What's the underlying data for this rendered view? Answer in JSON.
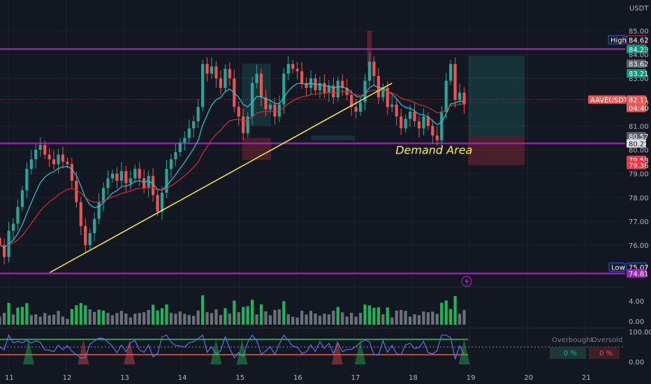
{
  "chart_data": {
    "type": "candlestick",
    "symbol_tag": "AAVEUSDT.P",
    "currency": "USDT",
    "price_axis": {
      "range": [
        74.5,
        85.4
      ],
      "ticks": [
        "85.00",
        "84.00",
        "83.00",
        "82.00",
        "81.00",
        "80.00",
        "79.00",
        "78.00",
        "77.00",
        "76.00"
      ]
    },
    "time_axis": {
      "labels": [
        "11",
        "12",
        "13",
        "14",
        "15",
        "16",
        "17",
        "18",
        "19",
        "20",
        "21"
      ],
      "day_start": 11,
      "day_end": 21.9
    },
    "last_price": "82.11",
    "countdown": "04:40",
    "price_tags": [
      {
        "text": "84.62",
        "price": 84.62,
        "bg": "#131722",
        "fg": "#ffffff",
        "border": "#e91e63"
      },
      {
        "text": "84.23",
        "price": 84.23,
        "bg": "#089981",
        "fg": "#ffffff"
      },
      {
        "text": "83.62",
        "price": 83.62,
        "bg": "#5d606b",
        "fg": "#ffffff"
      },
      {
        "text": "83.21",
        "price": 83.21,
        "bg": "#089981",
        "fg": "#ffffff"
      },
      {
        "text": "81.80",
        "price": 81.8,
        "bg": "#dedede",
        "fg": "#131722"
      },
      {
        "text": "80.57",
        "price": 80.57,
        "bg": "#5d606b",
        "fg": "#ffffff"
      },
      {
        "text": "80.27",
        "price": 80.27,
        "bg": "#dedede",
        "fg": "#131722"
      },
      {
        "text": "79.58",
        "price": 79.58,
        "bg": "#f23645",
        "fg": "#ffffff"
      },
      {
        "text": "79.36",
        "price": 79.36,
        "bg": "#f23645",
        "fg": "#ffffff"
      },
      {
        "text": "75.07",
        "price": 75.07,
        "bg": "#131722",
        "fg": "#ffffff",
        "border": "#2962ff"
      },
      {
        "text": "74.81",
        "price": 74.81,
        "bg": "#9c27b0",
        "fg": "#ffffff"
      }
    ],
    "high_label": "High",
    "low_label": "Low",
    "horizontal_levels": [
      84.23,
      80.27,
      74.81
    ],
    "trendline": {
      "from": [
        11.72,
        74.85
      ],
      "to": [
        17.65,
        82.8
      ]
    },
    "annotation": {
      "text": "Demand Area",
      "day": 17.71,
      "price": 80.0
    },
    "zones": [
      {
        "d1": 15.05,
        "d2": 15.55,
        "p1": 81.0,
        "p2": 83.62,
        "color": "#26a69a",
        "opacity": 0.18
      },
      {
        "d1": 15.05,
        "d2": 15.55,
        "p1": 79.58,
        "p2": 80.5,
        "color": "#f23645",
        "opacity": 0.25
      },
      {
        "d1": 16.25,
        "d2": 17.0,
        "p1": 80.4,
        "p2": 80.6,
        "color": "#26a69a",
        "opacity": 0.2
      },
      {
        "d1": 18.97,
        "d2": 19.95,
        "p1": 80.57,
        "p2": 83.95,
        "color": "#26a69a",
        "opacity": 0.2
      },
      {
        "d1": 18.97,
        "d2": 19.95,
        "p1": 79.36,
        "p2": 80.57,
        "color": "#f23645",
        "opacity": 0.25
      }
    ],
    "wick_highlight": {
      "d1": 17.22,
      "d2": 17.3,
      "p1": 83.5,
      "p2": 85.0
    },
    "ema_fast_color": "#26c6da",
    "ema_slow_color": "#d32f2f",
    "level_color": "#9c27b0",
    "trend_color": "#ffeb3b",
    "up_color": "#26a69a",
    "down_color": "#ef5350",
    "closes": [
      76.0,
      75.5,
      76.6,
      76.9,
      77.6,
      78.3,
      79.2,
      79.6,
      80.0,
      80.2,
      79.8,
      79.6,
      79.4,
      79.8,
      79.5,
      79.4,
      78.7,
      77.8,
      76.8,
      76.0,
      76.5,
      77.1,
      77.8,
      78.4,
      78.8,
      79.0,
      78.7,
      79.1,
      78.6,
      78.8,
      79.2,
      78.8,
      78.4,
      78.9,
      78.1,
      77.4,
      78.2,
      79.2,
      79.6,
      79.9,
      80.3,
      80.5,
      80.9,
      81.2,
      81.8,
      83.6,
      83.2,
      83.5,
      83.0,
      82.6,
      83.4,
      83.0,
      81.8,
      81.4,
      80.7,
      81.4,
      82.8,
      83.2,
      82.2,
      81.7,
      81.9,
      81.4,
      81.9,
      83.2,
      83.6,
      83.4,
      83.3,
      82.8,
      82.6,
      83.0,
      82.5,
      82.8,
      82.4,
      82.7,
      82.2,
      82.9,
      82.6,
      82.3,
      81.8,
      81.6,
      82.0,
      82.9,
      83.7,
      83.1,
      82.2,
      82.6,
      81.8,
      81.9,
      81.4,
      80.9,
      81.3,
      81.6,
      81.2,
      80.9,
      81.4,
      81.0,
      80.6,
      80.4,
      81.6,
      82.9,
      83.6,
      82.1,
      82.4,
      81.9
    ]
  },
  "oscillator": {
    "overbought_label": "Overbought",
    "oversold_label": "Oversold",
    "overbought_value": "0 %",
    "oversold_value": "0 %",
    "ticks": [
      "100.00",
      "0.00"
    ]
  },
  "volume": {
    "ticks": [
      "4.00",
      "0.00"
    ]
  }
}
